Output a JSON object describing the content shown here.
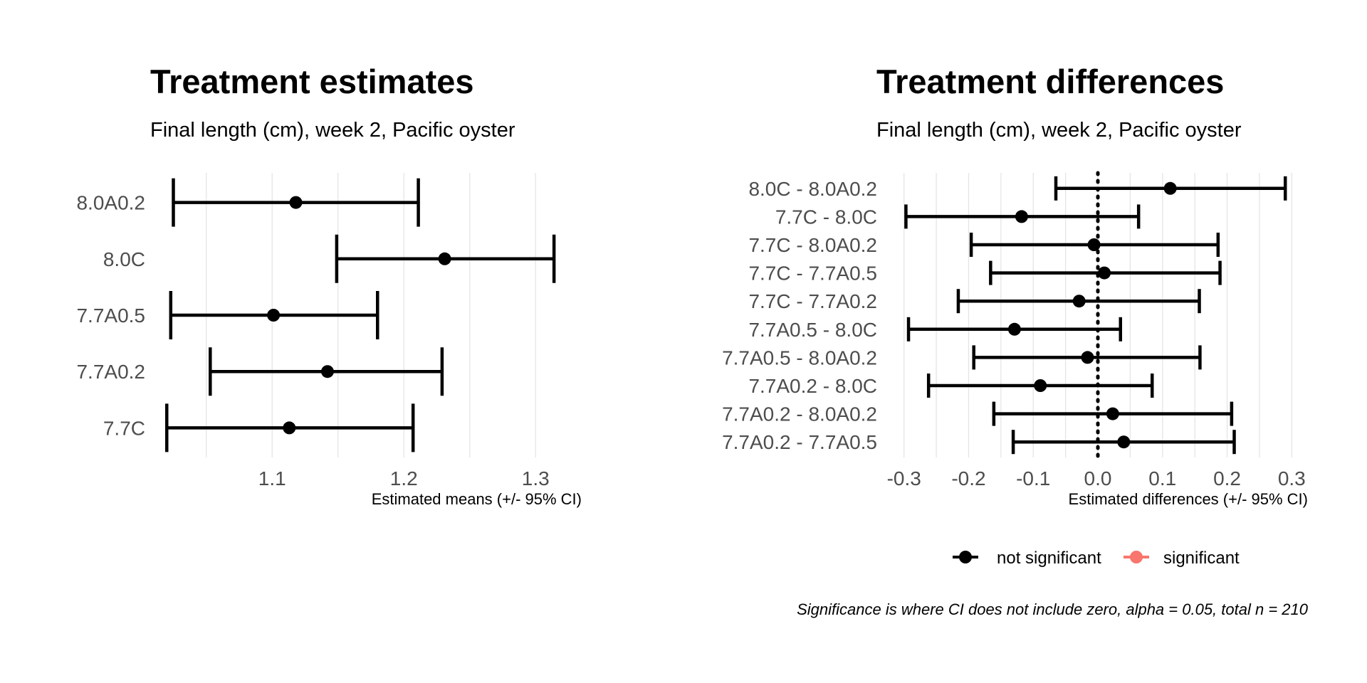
{
  "chart_data": [
    {
      "type": "errorbar",
      "title": "Treatment estimates",
      "subtitle": "Final length (cm), week 2, Pacific oyster",
      "xlabel": "Estimated means (+/- 95% CI)",
      "xlim": [
        1.015,
        1.335
      ],
      "xticks": [
        "1.1",
        "1.2",
        "1.3"
      ],
      "xtick_values": [
        1.1,
        1.2,
        1.3
      ],
      "grid": true,
      "categories": [
        "8.0A0.2",
        "8.0C",
        "7.7A0.5",
        "7.7A0.2",
        "7.7C"
      ],
      "estimate": [
        1.118,
        1.231,
        1.101,
        1.142,
        1.113
      ],
      "lower": [
        1.025,
        1.149,
        1.023,
        1.053,
        1.02
      ],
      "upper": [
        1.211,
        1.314,
        1.18,
        1.229,
        1.207
      ]
    },
    {
      "type": "errorbar",
      "title": "Treatment differences",
      "subtitle": "Final length (cm), week 2, Pacific oyster",
      "xlabel": "Estimated differences (+/- 95% CI)",
      "xlim": [
        -0.325,
        0.325
      ],
      "xticks": [
        "-0.3",
        "-0.2",
        "-0.1",
        "0.0",
        "0.1",
        "0.2",
        "0.3"
      ],
      "xtick_values": [
        -0.3,
        -0.2,
        -0.1,
        0.0,
        0.1,
        0.2,
        0.3
      ],
      "reference_line": 0,
      "grid": true,
      "categories": [
        "8.0C - 8.0A0.2",
        "7.7C - 8.0C",
        "7.7C - 8.0A0.2",
        "7.7C - 7.7A0.5",
        "7.7C - 7.7A0.2",
        "7.7A0.5 - 8.0C",
        "7.7A0.5 - 8.0A0.2",
        "7.7A0.2 - 8.0C",
        "7.7A0.2 - 8.0A0.2",
        "7.7A0.2 - 7.7A0.5"
      ],
      "estimate": [
        0.112,
        -0.118,
        -0.006,
        0.01,
        -0.029,
        -0.129,
        -0.016,
        -0.089,
        0.023,
        0.04
      ],
      "lower": [
        -0.065,
        -0.297,
        -0.196,
        -0.166,
        -0.216,
        -0.293,
        -0.192,
        -0.262,
        -0.161,
        -0.131
      ],
      "upper": [
        0.29,
        0.063,
        0.186,
        0.189,
        0.157,
        0.035,
        0.158,
        0.084,
        0.207,
        0.211
      ],
      "significant": [
        false,
        false,
        false,
        false,
        false,
        false,
        false,
        false,
        false,
        false
      ]
    }
  ],
  "legend": {
    "items": [
      {
        "label": "not significant",
        "color": "#000000"
      },
      {
        "label": "significant",
        "color": "#f8766d"
      }
    ]
  },
  "caption": "Significance is where CI does not include zero, alpha = 0.05, total n = 210"
}
